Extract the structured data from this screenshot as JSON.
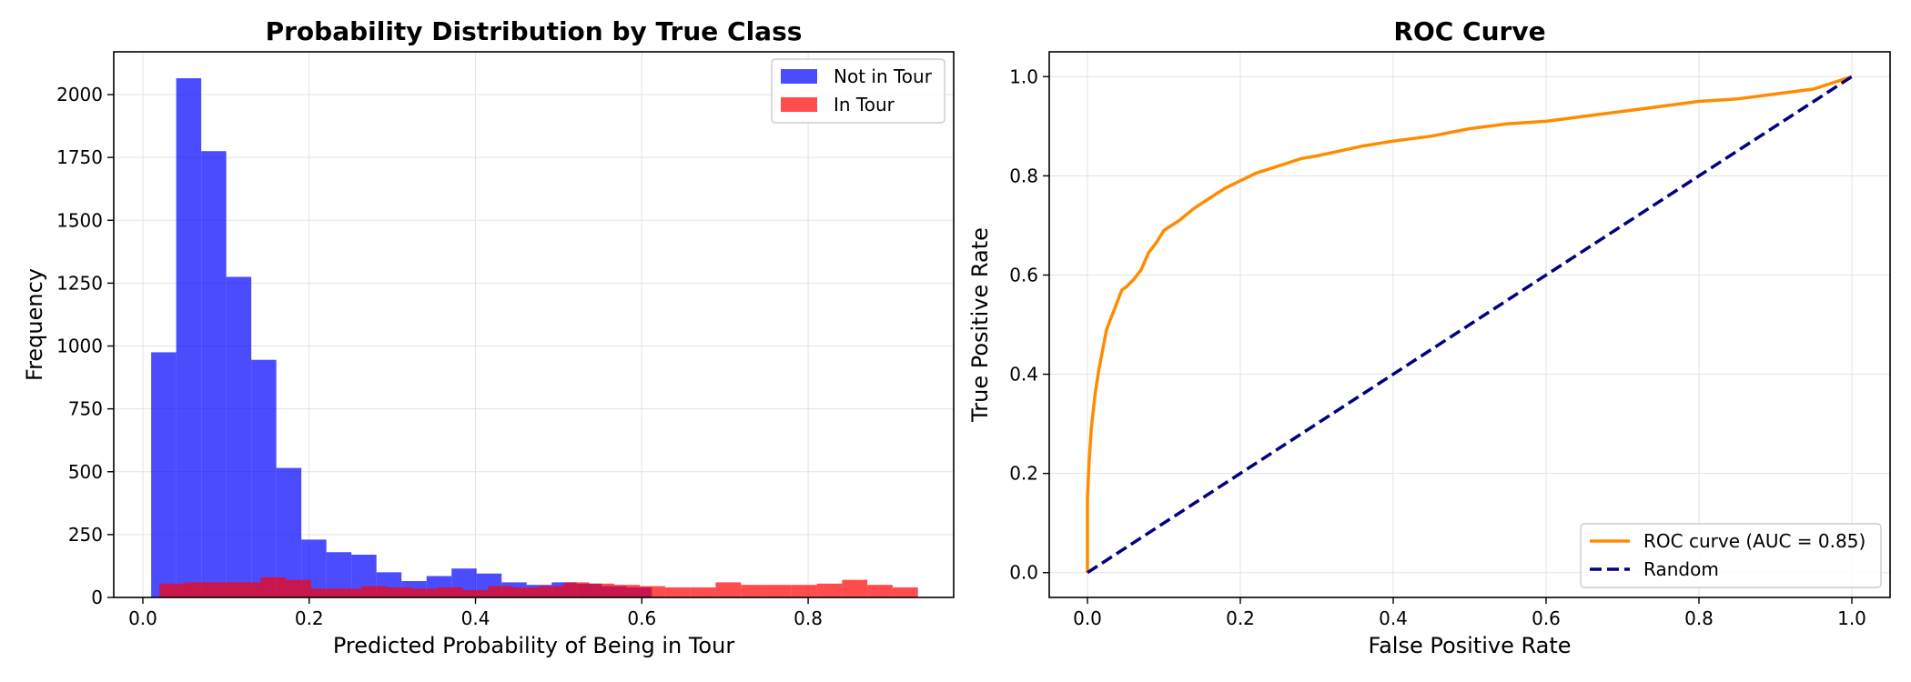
{
  "chart_data": [
    {
      "type": "bar",
      "subtype": "histogram",
      "title": "Probability Distribution by True Class",
      "xlabel": "Predicted Probability of Being in Tour",
      "ylabel": "Frequency",
      "xlim": [
        -0.035,
        0.975
      ],
      "ylim": [
        0,
        2170
      ],
      "xticks": [
        0.0,
        0.2,
        0.4,
        0.6,
        0.8
      ],
      "xtick_labels": [
        "0.0",
        "0.2",
        "0.4",
        "0.6",
        "0.8"
      ],
      "yticks": [
        0,
        250,
        500,
        750,
        1000,
        1250,
        1500,
        1750,
        2000
      ],
      "ytick_labels": [
        "0",
        "250",
        "500",
        "750",
        "1000",
        "1250",
        "1500",
        "1750",
        "2000"
      ],
      "grid": true,
      "legend_position": "upper right",
      "series": [
        {
          "name": "Not in Tour",
          "color": "#0000ff",
          "opacity": 0.7,
          "bin_edges": [
            0.01,
            0.0401,
            0.0702,
            0.1003,
            0.1304,
            0.1605,
            0.1906,
            0.2207,
            0.2508,
            0.2809,
            0.311,
            0.3411,
            0.3712,
            0.4013,
            0.4314,
            0.4615,
            0.4916,
            0.5217,
            0.5518,
            0.5819,
            0.612
          ],
          "values": [
            975,
            2065,
            1775,
            1275,
            945,
            515,
            230,
            180,
            170,
            100,
            65,
            85,
            115,
            95,
            60,
            50,
            60,
            55,
            45,
            40
          ]
        },
        {
          "name": "In Tour",
          "color": "#ff0000",
          "opacity": 0.7,
          "bin_edges": [
            0.02,
            0.0504,
            0.0808,
            0.1112,
            0.1416,
            0.172,
            0.2024,
            0.2328,
            0.2632,
            0.2936,
            0.324,
            0.3544,
            0.3848,
            0.4152,
            0.4456,
            0.476,
            0.5064,
            0.5368,
            0.5672,
            0.5976,
            0.628,
            0.6584,
            0.6888,
            0.7192,
            0.7496,
            0.78,
            0.8104,
            0.8408,
            0.8712,
            0.9016,
            0.932
          ],
          "values": [
            55,
            60,
            60,
            60,
            80,
            70,
            35,
            35,
            45,
            40,
            35,
            40,
            30,
            45,
            40,
            45,
            60,
            55,
            50,
            45,
            40,
            40,
            60,
            50,
            50,
            50,
            55,
            70,
            50,
            40
          ]
        }
      ]
    },
    {
      "type": "line",
      "title": "ROC Curve",
      "xlabel": "False Positive Rate",
      "ylabel": "True Positive Rate",
      "xlim": [
        -0.05,
        1.05
      ],
      "ylim": [
        -0.05,
        1.05
      ],
      "xticks": [
        0.0,
        0.2,
        0.4,
        0.6,
        0.8,
        1.0
      ],
      "xtick_labels": [
        "0.0",
        "0.2",
        "0.4",
        "0.6",
        "0.8",
        "1.0"
      ],
      "yticks": [
        0.0,
        0.2,
        0.4,
        0.6,
        0.8,
        1.0
      ],
      "ytick_labels": [
        "0.0",
        "0.2",
        "0.4",
        "0.6",
        "0.8",
        "1.0"
      ],
      "grid": true,
      "legend_position": "lower right",
      "series": [
        {
          "name": "ROC curve (AUC = 0.85)",
          "color": "#ff8c00",
          "style": "solid",
          "x": [
            0.0,
            0.0,
            0.002,
            0.005,
            0.01,
            0.015,
            0.02,
            0.025,
            0.03,
            0.035,
            0.04,
            0.045,
            0.05,
            0.06,
            0.07,
            0.08,
            0.09,
            0.1,
            0.12,
            0.14,
            0.16,
            0.18,
            0.2,
            0.22,
            0.25,
            0.28,
            0.3,
            0.33,
            0.36,
            0.4,
            0.45,
            0.5,
            0.55,
            0.6,
            0.65,
            0.7,
            0.75,
            0.8,
            0.85,
            0.9,
            0.95,
            1.0
          ],
          "y": [
            0.0,
            0.15,
            0.22,
            0.29,
            0.36,
            0.41,
            0.45,
            0.49,
            0.51,
            0.53,
            0.55,
            0.57,
            0.575,
            0.59,
            0.61,
            0.645,
            0.665,
            0.69,
            0.71,
            0.735,
            0.755,
            0.775,
            0.79,
            0.805,
            0.82,
            0.835,
            0.84,
            0.85,
            0.86,
            0.87,
            0.88,
            0.895,
            0.905,
            0.91,
            0.92,
            0.93,
            0.94,
            0.95,
            0.955,
            0.965,
            0.975,
            1.0
          ]
        },
        {
          "name": "Random",
          "color": "#000080",
          "style": "dashed",
          "x": [
            0.0,
            1.0
          ],
          "y": [
            0.0,
            1.0
          ]
        }
      ]
    }
  ]
}
